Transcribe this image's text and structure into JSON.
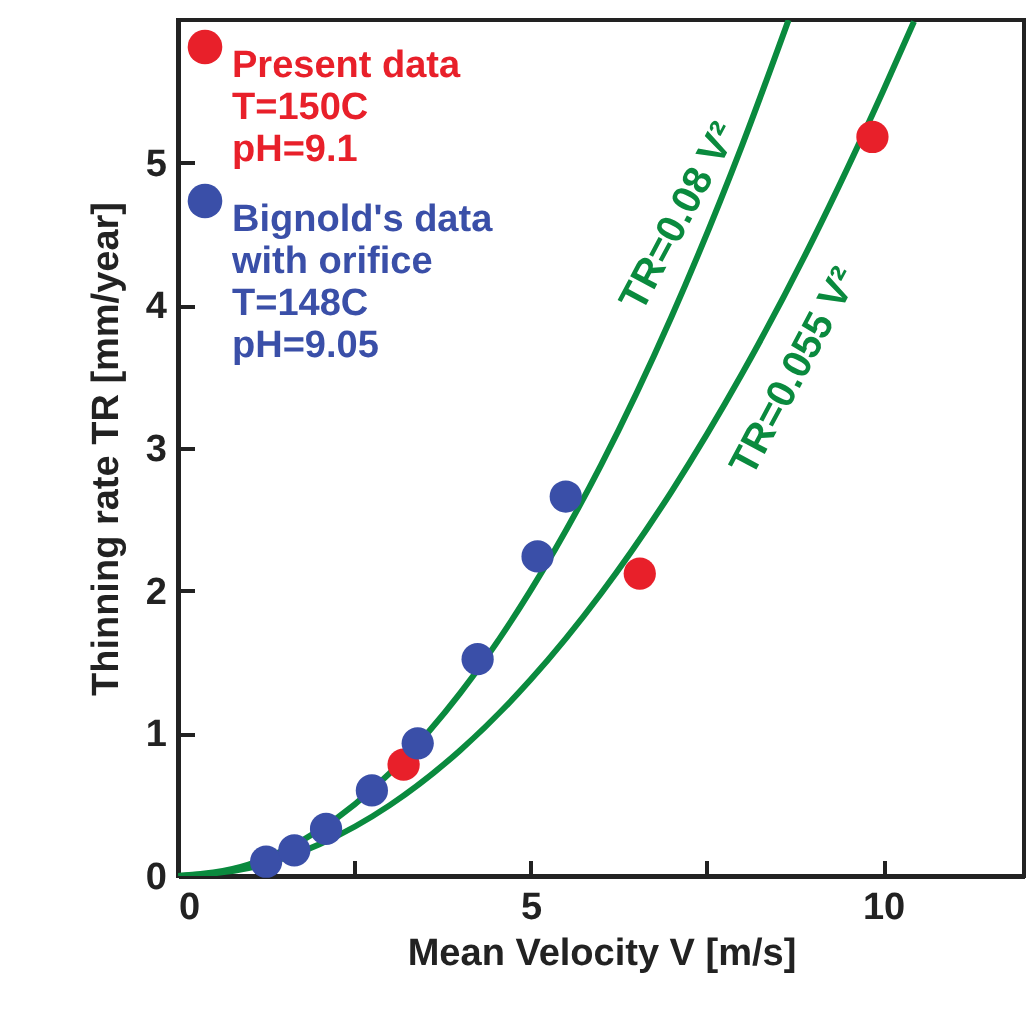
{
  "chart_data": {
    "type": "scatter",
    "xlabel": "Mean Velocity V [m/s]",
    "ylabel": "Thinning rate TR [mm/year]",
    "xlim": [
      0,
      12
    ],
    "xticks": [
      0,
      {
        "value": 2.5,
        "label": null
      },
      5,
      {
        "value": 7.5,
        "label": null
      },
      10
    ],
    "ylim": [
      0,
      6
    ],
    "yticks": [
      0,
      1,
      2,
      3,
      4,
      5
    ],
    "legend": "top left",
    "series": [
      {
        "name": "TR=0.08 V²",
        "type": "line",
        "color": "#0a8a3e",
        "x": [
          0,
          1,
          2,
          3,
          4,
          5,
          6,
          7,
          8,
          8.66
        ],
        "values": [
          0,
          0.08,
          0.32,
          0.72,
          1.28,
          2,
          2.88,
          3.92,
          5.12,
          6.0
        ]
      },
      {
        "name": "TR=0.055 V²",
        "type": "line",
        "color": "#0a8a3e",
        "x": [
          0,
          1,
          2,
          3,
          4,
          5,
          6,
          7,
          8,
          9,
          10,
          10.44
        ],
        "values": [
          0,
          0.055,
          0.22,
          0.495,
          0.88,
          1.375,
          1.98,
          2.695,
          3.52,
          4.455,
          5.5,
          5.99
        ]
      },
      {
        "name": "Present data\nT=150C\npH=9.1",
        "marker": "circle",
        "color": "#e8202a",
        "x": [
          3.2,
          6.55,
          9.85
        ],
        "values": [
          0.78,
          2.12,
          5.18
        ]
      },
      {
        "name": "Bignold's data\nwith orifice\nT=148C\npH=9.05",
        "marker": "circle",
        "color": "#3a4fa8",
        "x": [
          1.25,
          1.65,
          2.1,
          2.75,
          3.4,
          4.25,
          5.1,
          5.5
        ],
        "values": [
          0.1,
          0.18,
          0.33,
          0.6,
          0.93,
          1.52,
          2.24,
          2.66
        ]
      }
    ]
  }
}
